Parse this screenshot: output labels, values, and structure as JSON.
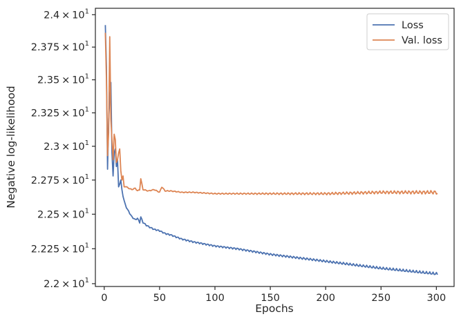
{
  "chart_data": {
    "type": "line",
    "xlabel": "Epochs",
    "ylabel": "Negative log-likelihood",
    "xlim": [
      -8,
      316
    ],
    "ylim": [
      21.98,
      24.05
    ],
    "y_scale": "log",
    "x_ticks": [
      0,
      50,
      100,
      150,
      200,
      250,
      300
    ],
    "x_tick_labels": [
      "0",
      "50",
      "100",
      "150",
      "200",
      "250",
      "300"
    ],
    "y_ticks": [
      22.0,
      22.25,
      22.5,
      22.75,
      23.0,
      23.25,
      23.5,
      23.75,
      24.0
    ],
    "y_tick_mantissas": [
      "2.2",
      "2.225",
      "2.25",
      "2.275",
      "2.3",
      "2.325",
      "2.35",
      "2.375",
      "2.4"
    ],
    "y_tick_times": "×",
    "y_tick_base": "10",
    "y_tick_exponent": "1",
    "grid": false,
    "legend": {
      "position": "top-right",
      "entries": [
        "Loss",
        "Val. loss"
      ]
    },
    "series": [
      {
        "name": "Loss",
        "color": "#4c72b0",
        "x": [
          1,
          2,
          3,
          4,
          5,
          6,
          7,
          8,
          9,
          10,
          11,
          12,
          13,
          14,
          15,
          16,
          17,
          18,
          20,
          22,
          25,
          28,
          30,
          32,
          33,
          35,
          38,
          40,
          45,
          50,
          55,
          60,
          70,
          80,
          100,
          120,
          150,
          200,
          250,
          300,
          301
        ],
        "y": [
          23.92,
          23.6,
          22.83,
          23.2,
          23.35,
          23.48,
          22.95,
          22.78,
          22.95,
          22.98,
          22.85,
          22.9,
          22.7,
          22.72,
          22.75,
          22.68,
          22.63,
          22.6,
          22.55,
          22.52,
          22.48,
          22.46,
          22.47,
          22.44,
          22.48,
          22.44,
          22.42,
          22.41,
          22.39,
          22.38,
          22.36,
          22.35,
          22.32,
          22.3,
          22.27,
          22.25,
          22.21,
          22.16,
          22.11,
          22.07,
          22.07
        ]
      },
      {
        "name": "Val. loss",
        "color": "#dd8452",
        "x": [
          1,
          2,
          3,
          4,
          5,
          6,
          7,
          8,
          9,
          10,
          11,
          12,
          13,
          14,
          15,
          16,
          17,
          18,
          20,
          22,
          25,
          28,
          30,
          32,
          33,
          35,
          40,
          45,
          50,
          52,
          55,
          60,
          70,
          80,
          100,
          150,
          200,
          250,
          300,
          301
        ],
        "y": [
          23.86,
          23.5,
          22.93,
          23.1,
          23.83,
          23.2,
          23.05,
          22.9,
          23.09,
          23.05,
          22.88,
          22.9,
          22.95,
          22.98,
          22.82,
          22.75,
          22.78,
          22.7,
          22.7,
          22.69,
          22.68,
          22.69,
          22.67,
          22.68,
          22.76,
          22.68,
          22.67,
          22.68,
          22.66,
          22.7,
          22.67,
          22.67,
          22.66,
          22.66,
          22.65,
          22.65,
          22.65,
          22.66,
          22.66,
          22.65
        ]
      }
    ]
  }
}
